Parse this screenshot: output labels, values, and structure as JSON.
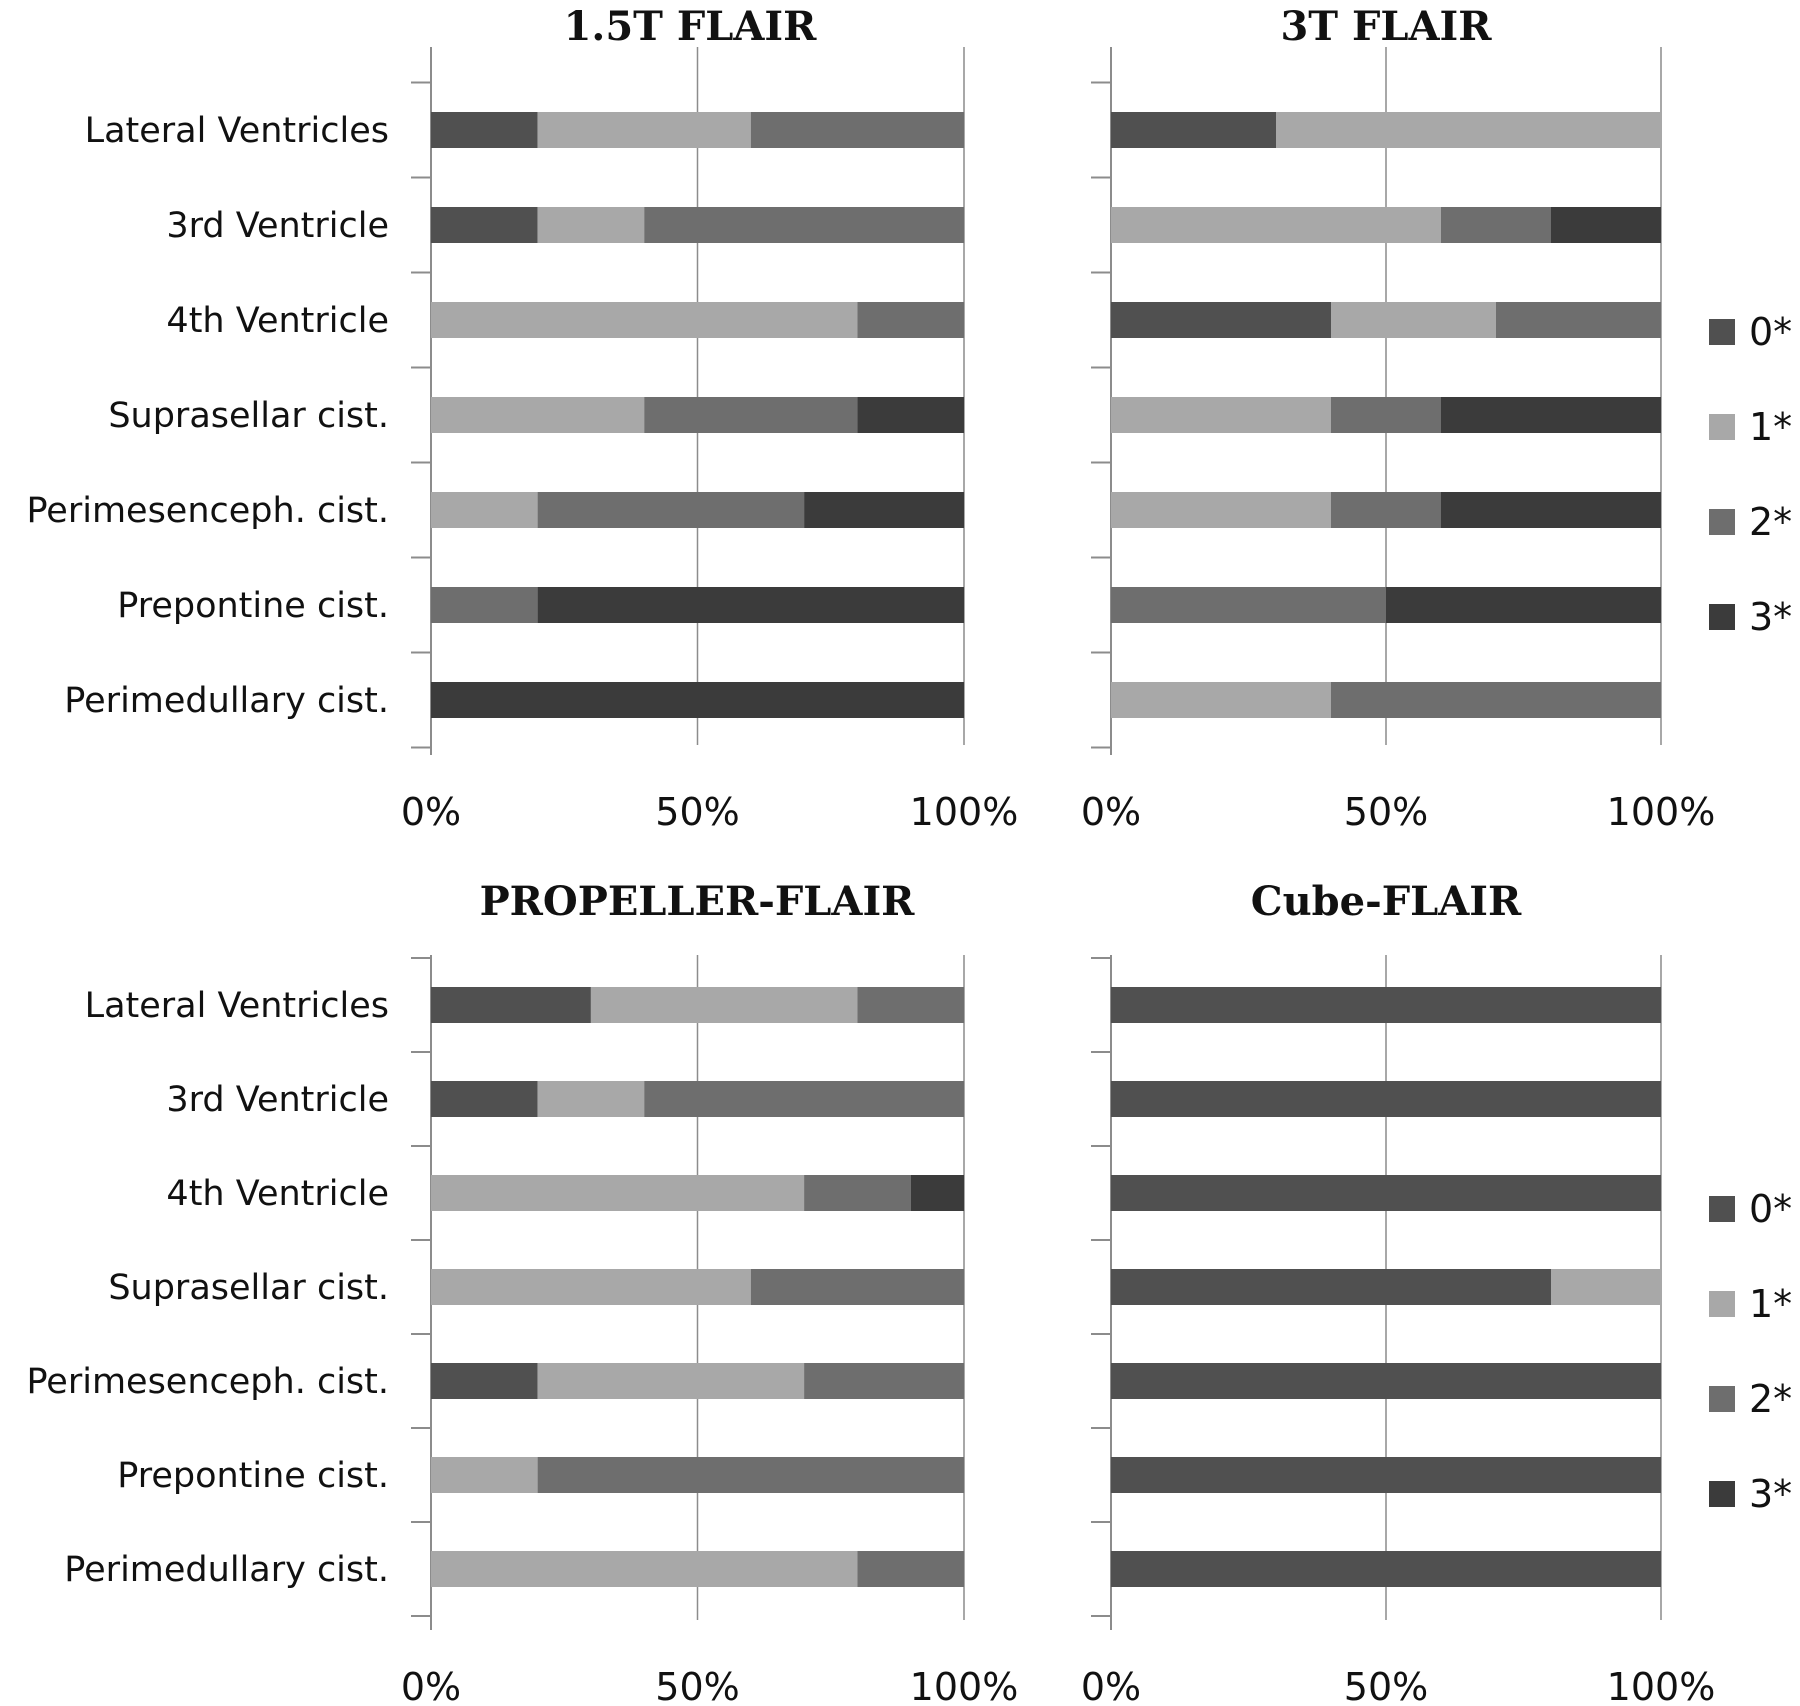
{
  "colors": {
    "0*": "#505050",
    "1*": "#a8a8a8",
    "2*": "#6e6e6e",
    "3*": "#3b3b3b",
    "grid": "#8c8c8c",
    "axis": "#8c8c8c"
  },
  "chart_data": [
    {
      "type": "bar",
      "orientation": "horizontal",
      "stacked": "percent",
      "title": "1.5T FLAIR",
      "categories": [
        "Lateral Ventricles",
        "3rd Ventricle",
        "4th Ventricle",
        "Suprasellar cist.",
        "Perimesenceph. cist.",
        "Prepontine cist.",
        "Perimedullary cist."
      ],
      "series": [
        {
          "name": "0*",
          "values": [
            20,
            20,
            0,
            0,
            0,
            0,
            0
          ]
        },
        {
          "name": "1*",
          "values": [
            40,
            20,
            80,
            40,
            20,
            0,
            0
          ]
        },
        {
          "name": "2*",
          "values": [
            40,
            60,
            20,
            40,
            50,
            20,
            0
          ]
        },
        {
          "name": "3*",
          "values": [
            0,
            0,
            0,
            20,
            30,
            80,
            100
          ]
        }
      ],
      "xticks": [
        "0%",
        "50%",
        "100%"
      ],
      "xlim": [
        0,
        100
      ],
      "grid": true,
      "legend": "none"
    },
    {
      "type": "bar",
      "orientation": "horizontal",
      "stacked": "percent",
      "title": "3T FLAIR",
      "categories": [
        "Lateral Ventricles",
        "3rd Ventricle",
        "4th Ventricle",
        "Suprasellar cist.",
        "Perimesenceph. cist.",
        "Prepontine cist.",
        "Perimedullary cist."
      ],
      "series": [
        {
          "name": "0*",
          "values": [
            30,
            0,
            40,
            0,
            0,
            0,
            0
          ]
        },
        {
          "name": "1*",
          "values": [
            70,
            60,
            30,
            40,
            40,
            0,
            40
          ]
        },
        {
          "name": "2*",
          "values": [
            0,
            20,
            30,
            20,
            20,
            50,
            60
          ]
        },
        {
          "name": "3*",
          "values": [
            0,
            20,
            0,
            40,
            40,
            50,
            0
          ]
        }
      ],
      "xticks": [
        "0%",
        "50%",
        "100%"
      ],
      "xlim": [
        0,
        100
      ],
      "grid": true,
      "legend": "right",
      "legend_entries": [
        "0*",
        "1*",
        "2*",
        "3*"
      ]
    },
    {
      "type": "bar",
      "orientation": "horizontal",
      "stacked": "percent",
      "title": "PROPELLER-FLAIR",
      "categories": [
        "Lateral Ventricles",
        "3rd Ventricle",
        "4th Ventricle",
        "Suprasellar cist.",
        "Perimesenceph. cist.",
        "Prepontine cist.",
        "Perimedullary cist."
      ],
      "series": [
        {
          "name": "0*",
          "values": [
            30,
            20,
            0,
            0,
            20,
            0,
            0
          ]
        },
        {
          "name": "1*",
          "values": [
            50,
            20,
            70,
            60,
            50,
            20,
            80
          ]
        },
        {
          "name": "2*",
          "values": [
            20,
            60,
            20,
            40,
            30,
            80,
            20
          ]
        },
        {
          "name": "3*",
          "values": [
            0,
            0,
            10,
            0,
            0,
            0,
            0
          ]
        }
      ],
      "xticks": [
        "0%",
        "50%",
        "100%"
      ],
      "xlim": [
        0,
        100
      ],
      "grid": true,
      "legend": "none"
    },
    {
      "type": "bar",
      "orientation": "horizontal",
      "stacked": "percent",
      "title": "Cube-FLAIR",
      "categories": [
        "Lateral Ventricles",
        "3rd Ventricle",
        "4th Ventricle",
        "Suprasellar cist.",
        "Perimesenceph. cist.",
        "Prepontine cist.",
        "Perimedullary cist."
      ],
      "series": [
        {
          "name": "0*",
          "values": [
            100,
            100,
            100,
            80,
            100,
            100,
            100
          ]
        },
        {
          "name": "1*",
          "values": [
            0,
            0,
            0,
            20,
            0,
            0,
            0
          ]
        },
        {
          "name": "2*",
          "values": [
            0,
            0,
            0,
            0,
            0,
            0,
            0
          ]
        },
        {
          "name": "3*",
          "values": [
            0,
            0,
            0,
            0,
            0,
            0,
            0
          ]
        }
      ],
      "xticks": [
        "0%",
        "50%",
        "100%"
      ],
      "xlim": [
        0,
        100
      ],
      "grid": true,
      "legend": "right",
      "legend_entries": [
        "0*",
        "1*",
        "2*",
        "3*"
      ]
    }
  ]
}
